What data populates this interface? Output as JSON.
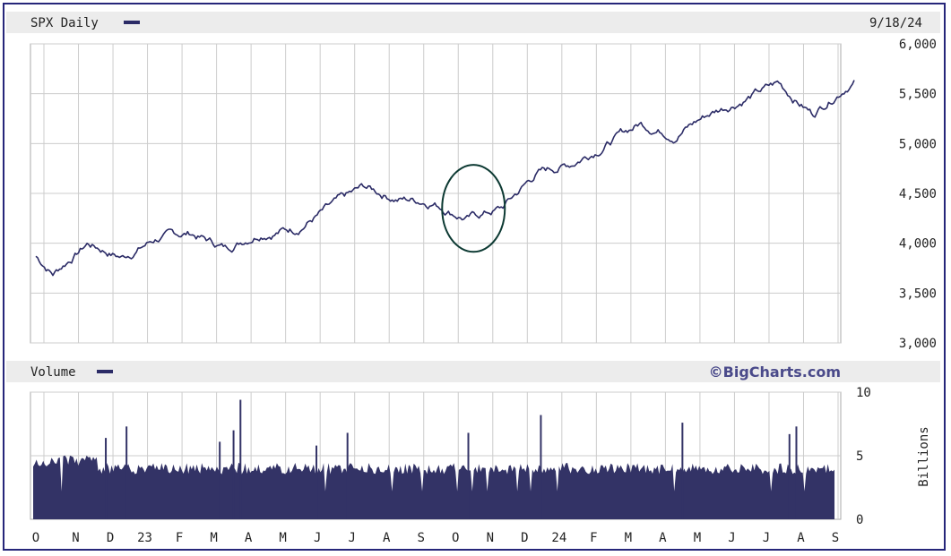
{
  "header": {
    "symbol_label": "SPX Daily",
    "date": "9/18/24"
  },
  "volume_panel": {
    "label": "Volume",
    "watermark": "©BigCharts.com",
    "unit_label": "Billions"
  },
  "colors": {
    "line": "#2b2b66",
    "volume": "#333366",
    "grid": "#cccccc",
    "panel_bg": "#ececec",
    "annotation": "#0d3a33",
    "watermark": "#4a4a8a"
  },
  "chart_data": {
    "type": "line",
    "title": "SPX Daily",
    "x_tick_labels": [
      "O",
      "N",
      "D",
      "23",
      "F",
      "M",
      "A",
      "M",
      "J",
      "J",
      "A",
      "S",
      "O",
      "N",
      "D",
      "24",
      "F",
      "M",
      "A",
      "M",
      "J",
      "J",
      "A",
      "S"
    ],
    "price": {
      "ylim": [
        3000,
        6000
      ],
      "y_ticks": [
        "6,000",
        "5,500",
        "5,000",
        "4,500",
        "4,000",
        "3,500",
        "3,000"
      ],
      "approx_month_anchors": [
        {
          "label": "O",
          "month": "2022-10",
          "value": 3700
        },
        {
          "label": "N",
          "month": "2022-11",
          "value": 4000
        },
        {
          "label": "D",
          "month": "2022-12",
          "value": 3860
        },
        {
          "label": "23",
          "month": "2023-01",
          "value": 4050
        },
        {
          "label": "F",
          "month": "2023-02",
          "value": 4100
        },
        {
          "label": "M",
          "month": "2023-03",
          "value": 3950
        },
        {
          "label": "A",
          "month": "2023-04",
          "value": 4120
        },
        {
          "label": "M",
          "month": "2023-05",
          "value": 4150
        },
        {
          "label": "J",
          "month": "2023-06",
          "value": 4350
        },
        {
          "label": "J",
          "month": "2023-07",
          "value": 4550
        },
        {
          "label": "A",
          "month": "2023-08",
          "value": 4450
        },
        {
          "label": "S",
          "month": "2023-09",
          "value": 4420
        },
        {
          "label": "O",
          "month": "2023-10",
          "value": 4250
        },
        {
          "label": "N",
          "month": "2023-11",
          "value": 4350
        },
        {
          "label": "D",
          "month": "2023-12",
          "value": 4700
        },
        {
          "label": "24",
          "month": "2024-01",
          "value": 4800
        },
        {
          "label": "F",
          "month": "2024-02",
          "value": 5000
        },
        {
          "label": "M",
          "month": "2024-03",
          "value": 5200
        },
        {
          "label": "A",
          "month": "2024-04",
          "value": 5100
        },
        {
          "label": "M",
          "month": "2024-05",
          "value": 5300
        },
        {
          "label": "J",
          "month": "2024-06",
          "value": 5450
        },
        {
          "label": "J",
          "month": "2024-07",
          "value": 5600
        },
        {
          "label": "A",
          "month": "2024-08",
          "value": 5300
        },
        {
          "label": "S",
          "month": "2024-09",
          "value": 5600
        }
      ]
    },
    "volume": {
      "ylim": [
        0,
        10
      ],
      "y_ticks": [
        "10",
        "5",
        "0"
      ],
      "unit": "Billions",
      "typical_level": 4
    },
    "annotation": {
      "shape": "ellipse",
      "month": "2023-10",
      "value_range": [
        3950,
        4750
      ]
    }
  }
}
